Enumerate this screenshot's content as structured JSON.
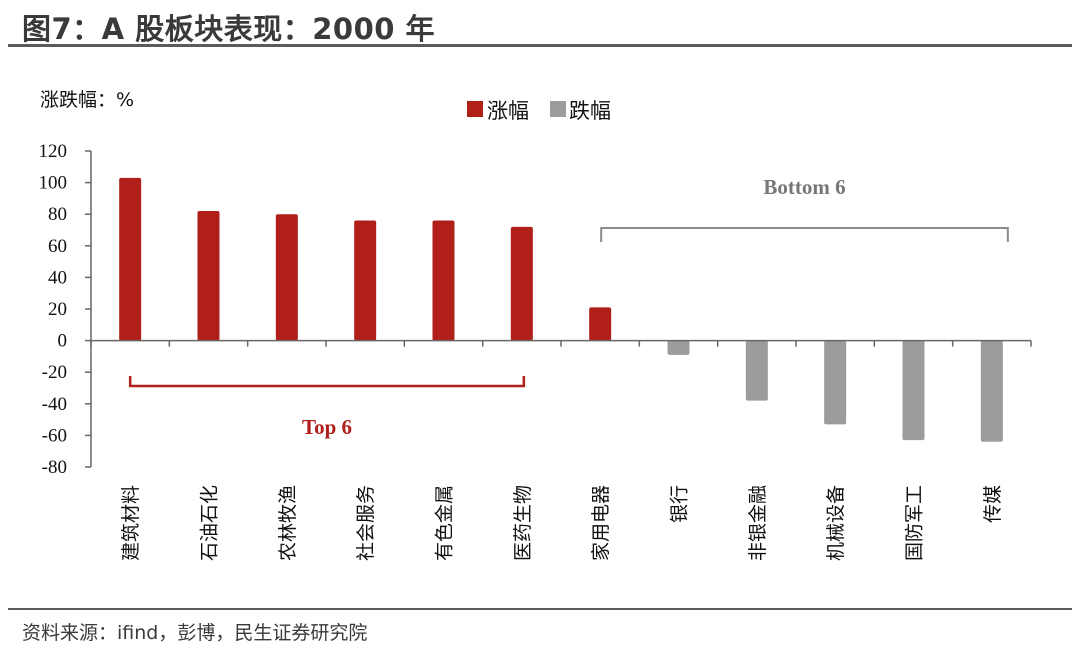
{
  "header": {
    "title": "图7：A 股板块表现：2000 年"
  },
  "footer": {
    "source": "资料来源：ifind，彭博，民生证券研究院"
  },
  "colors": {
    "rise": "#B11F1A",
    "fall": "#9C9C9C",
    "bracket_top": "#B11F1A",
    "bracket_bottom": "#8C8C8C"
  },
  "chart_data": {
    "type": "bar",
    "ylabel": "涨跌幅：%",
    "ylim": [
      -80,
      120
    ],
    "yticks": [
      120,
      100,
      80,
      60,
      40,
      20,
      0,
      -20,
      -40,
      -60,
      -80
    ],
    "categories": [
      "建筑材料",
      "石油石化",
      "农林牧渔",
      "社会服务",
      "有色金属",
      "医药生物",
      "家用电器",
      "银行",
      "非银金融",
      "机械设备",
      "国防军工",
      "传媒"
    ],
    "values": [
      103,
      82,
      80,
      76,
      76,
      72,
      21,
      -9,
      -38,
      -53,
      -63,
      -64
    ],
    "legend": [
      {
        "label": "涨幅",
        "color": "#B11F1A"
      },
      {
        "label": "跌幅",
        "color": "#9C9C9C"
      }
    ],
    "annotations": [
      {
        "text": "Top 6",
        "from_index": 0,
        "to_index": 5
      },
      {
        "text": "Bottom 6",
        "from_index": 6,
        "to_index": 11
      }
    ],
    "legend_position": "top-center",
    "grid": false
  }
}
